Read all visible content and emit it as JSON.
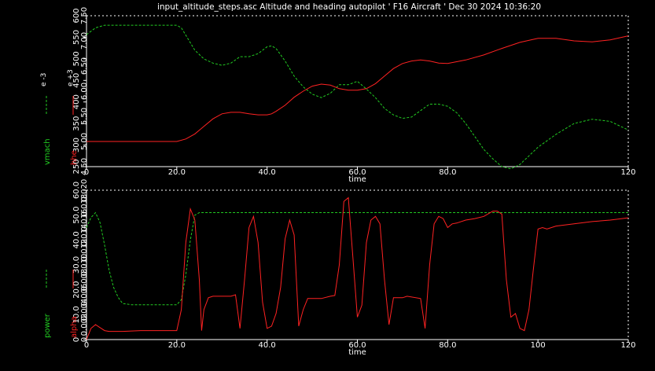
{
  "title": "input_altitude_steps.asc Altitude and heading autopilot ' F16 Aircraft ' Dec 30 2024 10:36:20",
  "colors": {
    "background": "#000000",
    "axis": "#ffffff",
    "green": "#22cc22",
    "red": "#ff2222"
  },
  "chart_data": [
    {
      "type": "line",
      "xlabel": "time",
      "xlim": [
        0,
        120
      ],
      "xticks": [
        "0",
        "20.0",
        "40.0",
        "60.0",
        "80.0",
        "120"
      ],
      "xtick_values": [
        0,
        20,
        40,
        60,
        80,
        120
      ],
      "grid": false,
      "left_axis": {
        "name": "vmach",
        "multiplier": "e -3",
        "color": "#22cc22",
        "ylim": [
          250,
          600
        ],
        "ticks": [
          "250",
          "300",
          "350",
          "400",
          "450",
          "500",
          "550",
          "600"
        ],
        "tick_values": [
          250,
          300,
          350,
          400,
          450,
          500,
          550,
          600
        ]
      },
      "right_axis": {
        "name": "hhe",
        "multiplier": "e +3",
        "color": "#ff2222",
        "ylim": [
          4.5,
          7.5
        ],
        "ticks": [
          "4.50",
          "5.00",
          "5.50",
          "6.00",
          "6.50",
          "7.00",
          "7.50"
        ],
        "tick_values": [
          4.5,
          5.0,
          5.5,
          6.0,
          6.5,
          7.0,
          7.5
        ]
      },
      "series": [
        {
          "name": "vmach",
          "axis": "left",
          "color": "#22cc22",
          "dashed": true,
          "x": [
            0,
            2,
            4,
            10,
            15,
            20,
            21,
            22,
            24,
            26,
            28,
            30,
            32,
            34,
            35,
            36,
            38,
            40,
            41,
            42,
            44,
            46,
            48,
            50,
            52,
            54,
            56,
            58,
            60,
            62,
            64,
            66,
            68,
            70,
            72,
            74,
            76,
            78,
            80,
            82,
            84,
            86,
            88,
            90,
            92,
            94,
            96,
            98,
            100,
            104,
            108,
            112,
            116,
            120
          ],
          "y": [
            556,
            572,
            578,
            578,
            578,
            578,
            572,
            555,
            520,
            500,
            490,
            485,
            490,
            505,
            505,
            505,
            512,
            528,
            530,
            524,
            495,
            460,
            435,
            418,
            410,
            420,
            440,
            440,
            448,
            430,
            410,
            385,
            370,
            362,
            365,
            380,
            395,
            395,
            390,
            375,
            350,
            320,
            290,
            268,
            250,
            245,
            255,
            275,
            295,
            325,
            350,
            360,
            355,
            335
          ]
        },
        {
          "name": "hhe",
          "axis": "right",
          "color": "#ff2222",
          "dashed": false,
          "x": [
            0,
            10,
            18,
            20,
            22,
            24,
            26,
            28,
            30,
            32,
            34,
            36,
            38,
            40,
            41,
            42,
            44,
            46,
            48,
            50,
            52,
            54,
            56,
            58,
            60,
            62,
            64,
            66,
            68,
            70,
            72,
            74,
            76,
            78,
            80,
            84,
            88,
            92,
            96,
            100,
            104,
            108,
            112,
            116,
            120
          ],
          "y": [
            5.0,
            5.0,
            5.0,
            5.0,
            5.05,
            5.15,
            5.3,
            5.45,
            5.55,
            5.58,
            5.58,
            5.55,
            5.53,
            5.53,
            5.55,
            5.6,
            5.72,
            5.88,
            6.0,
            6.1,
            6.14,
            6.12,
            6.05,
            6.02,
            6.02,
            6.05,
            6.15,
            6.3,
            6.45,
            6.55,
            6.6,
            6.62,
            6.6,
            6.56,
            6.55,
            6.62,
            6.72,
            6.85,
            6.97,
            7.05,
            7.05,
            7.0,
            6.98,
            7.02,
            7.1
          ]
        }
      ]
    },
    {
      "type": "line",
      "xlabel": "time",
      "xlim": [
        0,
        120
      ],
      "xticks": [
        "0",
        "20.0",
        "40.0",
        "60.0",
        "80.0",
        "100",
        "120"
      ],
      "xtick_values": [
        0,
        20,
        40,
        60,
        80,
        100,
        120
      ],
      "grid": false,
      "left_axis": {
        "name": "power",
        "multiplier": "",
        "color": "#22cc22",
        "ylim": [
          0,
          60
        ],
        "ticks": [
          "0",
          "10.0",
          "20.0",
          "30.0",
          "40.0",
          "50.0",
          "60.0"
        ],
        "tick_values": [
          0,
          10,
          20,
          30,
          40,
          50,
          60
        ]
      },
      "right_axis": {
        "name": "alpha",
        "multiplier": "",
        "color": "#ff2222",
        "ylim": [
          0.0,
          0.02
        ],
        "ticks": [
          "0",
          "0.002",
          "0.004",
          "0.006",
          "0.008",
          "0.010",
          "0.012",
          "0.014",
          "0.016",
          "0.018",
          "0.020"
        ],
        "tick_values": [
          0,
          0.002,
          0.004,
          0.006,
          0.008,
          0.01,
          0.012,
          0.014,
          0.016,
          0.018,
          0.02
        ]
      },
      "series": [
        {
          "name": "power",
          "axis": "left",
          "color": "#22cc22",
          "dashed": true,
          "x": [
            0,
            1,
            2,
            3,
            4,
            5,
            6,
            7,
            8,
            10,
            12,
            15,
            18,
            20,
            21,
            22,
            23,
            24,
            25,
            26,
            30,
            40,
            50,
            60,
            70,
            80,
            90,
            100,
            110,
            120
          ],
          "y": [
            45,
            49,
            51,
            47,
            38,
            28,
            21,
            17,
            14.5,
            14,
            14,
            14,
            14,
            14,
            16,
            26,
            40,
            50,
            51,
            51,
            51,
            51,
            51,
            51,
            51,
            51,
            51,
            51,
            51,
            51
          ]
        },
        {
          "name": "alpha",
          "axis": "right",
          "color": "#ff2222",
          "dashed": false,
          "x": [
            0,
            1,
            2,
            3,
            4,
            5,
            8,
            12,
            16,
            20,
            21,
            22,
            23,
            24,
            25,
            25.5,
            26,
            27,
            28,
            32,
            33,
            34,
            35,
            36,
            37,
            38,
            39,
            40,
            41,
            42,
            43,
            44,
            45,
            46,
            47,
            48,
            49,
            52,
            54,
            55,
            56,
            57,
            58,
            59,
            60,
            61,
            62,
            63,
            64,
            65,
            66,
            67,
            68,
            69,
            70,
            71,
            74,
            75,
            76,
            77,
            78,
            79,
            80,
            81,
            82,
            84,
            86,
            88,
            90,
            91,
            92,
            93,
            94,
            95,
            96,
            97,
            98,
            99,
            100,
            101,
            102,
            104,
            108,
            112,
            116,
            120
          ],
          "y": [
            0.0,
            0.0015,
            0.002,
            0.0016,
            0.0012,
            0.0011,
            0.0011,
            0.0012,
            0.0012,
            0.0012,
            0.004,
            0.013,
            0.0175,
            0.016,
            0.008,
            0.0012,
            0.004,
            0.0056,
            0.0058,
            0.0058,
            0.006,
            0.0015,
            0.008,
            0.015,
            0.0165,
            0.013,
            0.005,
            0.0015,
            0.0018,
            0.0035,
            0.007,
            0.0135,
            0.016,
            0.014,
            0.0018,
            0.004,
            0.0055,
            0.0055,
            0.0058,
            0.0059,
            0.01,
            0.0185,
            0.019,
            0.011,
            0.003,
            0.0046,
            0.013,
            0.016,
            0.0165,
            0.0155,
            0.008,
            0.002,
            0.0056,
            0.0056,
            0.0056,
            0.0058,
            0.0055,
            0.0015,
            0.01,
            0.0155,
            0.0165,
            0.0162,
            0.015,
            0.0155,
            0.0156,
            0.016,
            0.0162,
            0.0165,
            0.0172,
            0.0172,
            0.0168,
            0.008,
            0.003,
            0.0035,
            0.0015,
            0.0012,
            0.004,
            0.0095,
            0.0148,
            0.015,
            0.0148,
            0.0152,
            0.0155,
            0.0158,
            0.016,
            0.0163
          ]
        }
      ]
    }
  ]
}
